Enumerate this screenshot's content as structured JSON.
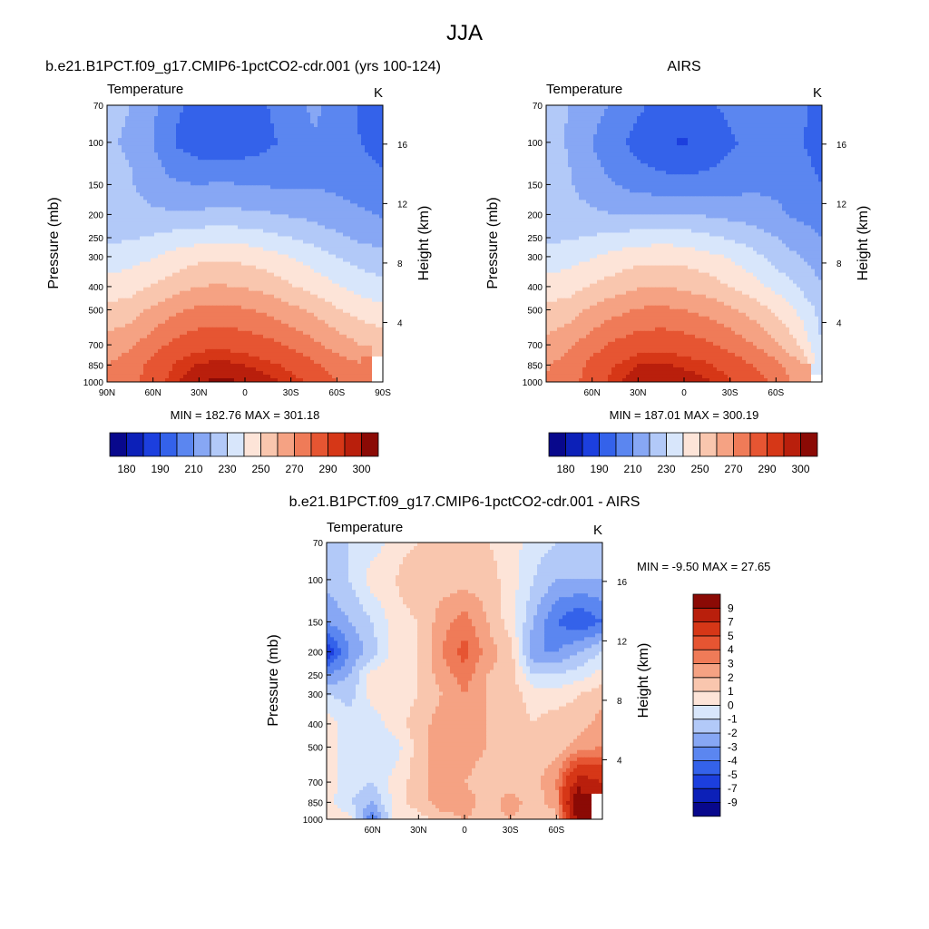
{
  "figure": {
    "title": "JJA"
  },
  "palette": {
    "temperature": [
      "#08088c",
      "#0c20b8",
      "#1c3fde",
      "#3462ea",
      "#5b86f0",
      "#87a7f4",
      "#b2c9f8",
      "#d8e6fb",
      "#fde4d8",
      "#f9c6ae",
      "#f5a283",
      "#ef7b58",
      "#e65532",
      "#d63717",
      "#b91f0c",
      "#8b0a05"
    ],
    "difference": [
      "#08088c",
      "#0c20b8",
      "#1c3fde",
      "#3462ea",
      "#5b86f0",
      "#87a7f4",
      "#b2c9f8",
      "#d8e6fb",
      "#fde4d8",
      "#f9c6ae",
      "#f5a283",
      "#ef7b58",
      "#e65532",
      "#d63717",
      "#b91f0c",
      "#8b0a05"
    ],
    "missing": "#ffffff"
  },
  "chart_data": [
    {
      "id": "model",
      "type": "heatmap",
      "title": "b.e21.B1PCT.f09_g17.CMIP6-1pctCO2-cdr.001 (yrs 100-124)",
      "left_label": "Temperature",
      "right_label": "K",
      "xlabel": "",
      "ylabel": "Pressure (mb)",
      "y2label": "Height (km)",
      "xlim": [
        90,
        -90
      ],
      "ylim": [
        1000,
        70
      ],
      "x_ticks": [
        90,
        60,
        30,
        0,
        -30,
        -60,
        -90
      ],
      "x_tick_labels": [
        "90N",
        "60N",
        "30N",
        "0",
        "30S",
        "60S",
        "90S"
      ],
      "y_ticks": [
        70,
        100,
        150,
        200,
        250,
        300,
        400,
        500,
        700,
        850,
        1000
      ],
      "y_tick_labels": [
        "70",
        "100",
        "150",
        "200",
        "250",
        "300",
        "400",
        "500",
        "700",
        "850",
        "1000"
      ],
      "y2_ticks_km": [
        4,
        8,
        12,
        16
      ],
      "y2_tick_labels": [
        "4",
        "8",
        "12",
        "16"
      ],
      "stats": "MIN = 182.76  MAX = 301.18",
      "min": 182.76,
      "max": 301.18,
      "levels": [
        180,
        185,
        190,
        200,
        210,
        220,
        230,
        240,
        250,
        260,
        270,
        280,
        290,
        295,
        300
      ],
      "colorbar_labels": [
        "180",
        "190",
        "210",
        "230",
        "250",
        "270",
        "290",
        "300"
      ],
      "colorbar_label_after_box": [
        0,
        2,
        4,
        6,
        8,
        10,
        12,
        14
      ],
      "colorbar_orientation": "horizontal",
      "x_grid": [
        90,
        75,
        60,
        45,
        30,
        15,
        0,
        -15,
        -30,
        -45,
        -60,
        -75,
        -90
      ],
      "y_grid": [
        1000,
        850,
        700,
        500,
        400,
        300,
        250,
        200,
        150,
        100,
        70
      ],
      "z": [
        [
          272,
          276,
          285,
          294,
          300,
          301,
          300,
          297,
          293,
          288,
          280,
          275,
          null
        ],
        [
          270,
          275,
          283,
          291,
          296,
          297,
          295,
          292,
          288,
          282,
          276,
          271,
          null
        ],
        [
          264,
          268,
          276,
          283,
          287,
          288,
          286,
          283,
          278,
          272,
          266,
          260,
          257
        ],
        [
          252,
          255,
          262,
          268,
          272,
          273,
          271,
          268,
          263,
          258,
          251,
          246,
          243
        ],
        [
          244,
          246,
          251,
          256,
          260,
          261,
          259,
          256,
          251,
          246,
          241,
          236,
          233
        ],
        [
          234,
          236,
          239,
          244,
          247,
          248,
          247,
          244,
          240,
          235,
          230,
          226,
          223
        ],
        [
          228,
          229,
          231,
          234,
          236,
          237,
          236,
          233,
          230,
          226,
          222,
          218,
          216
        ],
        [
          224,
          224,
          222,
          221,
          222,
          223,
          222,
          221,
          219,
          217,
          214,
          212,
          209
        ],
        [
          222,
          221,
          215,
          211,
          210,
          211,
          210,
          209,
          208,
          209,
          208,
          205,
          202
        ],
        [
          221,
          219,
          210,
          199,
          194,
          193,
          194,
          198,
          203,
          209,
          206,
          200,
          196
        ],
        [
          222,
          220,
          212,
          202,
          196,
          195,
          196,
          200,
          206,
          212,
          207,
          199,
          192
        ]
      ]
    },
    {
      "id": "obs",
      "type": "heatmap",
      "title": "AIRS",
      "left_label": "Temperature",
      "right_label": "K",
      "xlabel": "",
      "ylabel": "Pressure (mb)",
      "y2label": "Height (km)",
      "xlim": [
        90,
        -90
      ],
      "ylim": [
        1000,
        70
      ],
      "x_ticks": [
        60,
        30,
        0,
        -30,
        -60
      ],
      "x_tick_labels": [
        "60N",
        "30N",
        "0",
        "30S",
        "60S"
      ],
      "y_ticks": [
        70,
        100,
        150,
        200,
        250,
        300,
        400,
        500,
        700,
        850,
        1000
      ],
      "y_tick_labels": [
        "70",
        "100",
        "150",
        "200",
        "250",
        "300",
        "400",
        "500",
        "700",
        "850",
        "1000"
      ],
      "y2_ticks_km": [
        4,
        8,
        12,
        16
      ],
      "y2_tick_labels": [
        "4",
        "8",
        "12",
        "16"
      ],
      "stats": "MIN = 187.01  MAX = 300.19",
      "min": 187.01,
      "max": 300.19,
      "levels": [
        180,
        185,
        190,
        200,
        210,
        220,
        230,
        240,
        250,
        260,
        270,
        280,
        290,
        295,
        300
      ],
      "colorbar_labels": [
        "180",
        "190",
        "210",
        "230",
        "250",
        "270",
        "290",
        "300"
      ],
      "colorbar_label_after_box": [
        0,
        2,
        4,
        6,
        8,
        10,
        12,
        14
      ],
      "colorbar_orientation": "horizontal",
      "x_grid": [
        90,
        75,
        60,
        45,
        30,
        15,
        0,
        -15,
        -30,
        -45,
        -60,
        -75,
        -90
      ],
      "y_grid": [
        1000,
        850,
        700,
        500,
        400,
        300,
        250,
        200,
        150,
        100,
        70
      ],
      "z": [
        [
          271,
          276,
          285,
          293,
          299,
          300,
          299,
          296,
          291,
          285,
          278,
          266,
          null
        ],
        [
          269,
          274,
          283,
          290,
          295,
          296,
          294,
          291,
          286,
          280,
          273,
          262,
          232
        ],
        [
          263,
          268,
          276,
          282,
          286,
          287,
          285,
          282,
          277,
          270,
          262,
          250,
          230
        ],
        [
          252,
          255,
          262,
          267,
          271,
          272,
          270,
          267,
          262,
          256,
          248,
          238,
          226
        ],
        [
          244,
          246,
          251,
          255,
          259,
          260,
          258,
          255,
          250,
          244,
          237,
          229,
          221
        ],
        [
          234,
          236,
          239,
          243,
          246,
          247,
          246,
          243,
          239,
          233,
          226,
          220,
          214
        ],
        [
          228,
          229,
          231,
          233,
          235,
          236,
          235,
          232,
          229,
          225,
          220,
          215,
          210
        ],
        [
          226,
          224,
          222,
          220,
          220,
          221,
          220,
          219,
          217,
          215,
          212,
          208,
          205
        ],
        [
          225,
          221,
          214,
          210,
          206,
          204,
          203,
          204,
          206,
          208,
          208,
          204,
          200
        ],
        [
          224,
          219,
          210,
          203,
          196,
          191,
          189,
          192,
          198,
          204,
          206,
          201,
          196
        ],
        [
          223,
          220,
          214,
          208,
          202,
          197,
          196,
          198,
          203,
          208,
          207,
          202,
          197
        ]
      ]
    },
    {
      "id": "diff",
      "type": "heatmap",
      "title": "b.e21.B1PCT.f09_g17.CMIP6-1pctCO2-cdr.001 - AIRS",
      "left_label": "Temperature",
      "right_label": "K",
      "xlabel": "",
      "ylabel": "Pressure (mb)",
      "y2label": "Height (km)",
      "xlim": [
        90,
        -90
      ],
      "ylim": [
        1000,
        70
      ],
      "x_ticks": [
        60,
        30,
        0,
        -30,
        -60
      ],
      "x_tick_labels": [
        "60N",
        "30N",
        "0",
        "30S",
        "60S"
      ],
      "y_ticks": [
        70,
        100,
        150,
        200,
        250,
        300,
        400,
        500,
        700,
        850,
        1000
      ],
      "y_tick_labels": [
        "70",
        "100",
        "150",
        "200",
        "250",
        "300",
        "400",
        "500",
        "700",
        "850",
        "1000"
      ],
      "y2_ticks_km": [
        4,
        8,
        12,
        16
      ],
      "y2_tick_labels": [
        "4",
        "8",
        "12",
        "16"
      ],
      "stats": "MIN =  -9.50  MAX =  27.65",
      "min": -9.5,
      "max": 27.65,
      "levels": [
        -9,
        -7,
        -5,
        -4,
        -3,
        -2,
        -1,
        0,
        1,
        2,
        3,
        4,
        5,
        7,
        9
      ],
      "colorbar_labels": [
        "-9",
        "-7",
        "-5",
        "-4",
        "-3",
        "-2",
        "-1",
        "0",
        "1",
        "2",
        "3",
        "4",
        "5",
        "7",
        "9"
      ],
      "colorbar_label_after_box": [
        0,
        1,
        2,
        3,
        4,
        5,
        6,
        7,
        8,
        9,
        10,
        11,
        12,
        13,
        14
      ],
      "colorbar_orientation": "vertical",
      "x_grid": [
        90,
        75,
        60,
        45,
        30,
        15,
        0,
        -15,
        -30,
        -45,
        -60,
        -75,
        -90
      ],
      "y_grid": [
        1000,
        850,
        700,
        500,
        400,
        300,
        250,
        200,
        150,
        100,
        70
      ],
      "z": [
        [
          1,
          0.5,
          -4,
          0.5,
          0.5,
          1.5,
          2,
          1.5,
          2,
          1.5,
          1.5,
          10,
          null
        ],
        [
          0.5,
          -1,
          -2,
          0.5,
          1.5,
          2.5,
          2.5,
          1.5,
          2.5,
          1.5,
          2.5,
          12,
          null
        ],
        [
          0.5,
          -0.5,
          -1,
          0.5,
          1.5,
          2.5,
          2,
          1.5,
          1.5,
          1.5,
          3,
          8,
          7
        ],
        [
          0.5,
          -0.5,
          -1,
          -0.5,
          1.5,
          2.5,
          2.5,
          2,
          1.5,
          1.5,
          1.5,
          2.5,
          3
        ],
        [
          0.5,
          -0.5,
          -0.5,
          0.5,
          1.5,
          2.5,
          2.5,
          2,
          1.5,
          1,
          1.5,
          1.5,
          2.5
        ],
        [
          -1,
          -1.5,
          0.5,
          0.5,
          1,
          2,
          3,
          2,
          1.5,
          0.5,
          0.5,
          1,
          1.5
        ],
        [
          -3,
          -2,
          0.5,
          0.5,
          1,
          2.5,
          3.5,
          2,
          1.5,
          -1,
          -1,
          -0.5,
          0.5
        ],
        [
          -6,
          -3,
          -1.5,
          0.5,
          1,
          3,
          4.5,
          2.5,
          1.5,
          -3,
          -3,
          -2,
          -1
        ],
        [
          -3,
          -2,
          -1,
          0.5,
          1,
          2.5,
          3.5,
          2,
          0.5,
          -2,
          -4,
          -5,
          -4
        ],
        [
          -1.5,
          -1,
          0.5,
          1,
          2,
          1.5,
          1.5,
          1.5,
          0.5,
          -1,
          -2,
          -2,
          -2
        ],
        [
          -1,
          -1,
          -0.5,
          0.5,
          1,
          1.5,
          1.5,
          1,
          0.5,
          -0.5,
          -1,
          -2,
          -1
        ]
      ]
    }
  ]
}
